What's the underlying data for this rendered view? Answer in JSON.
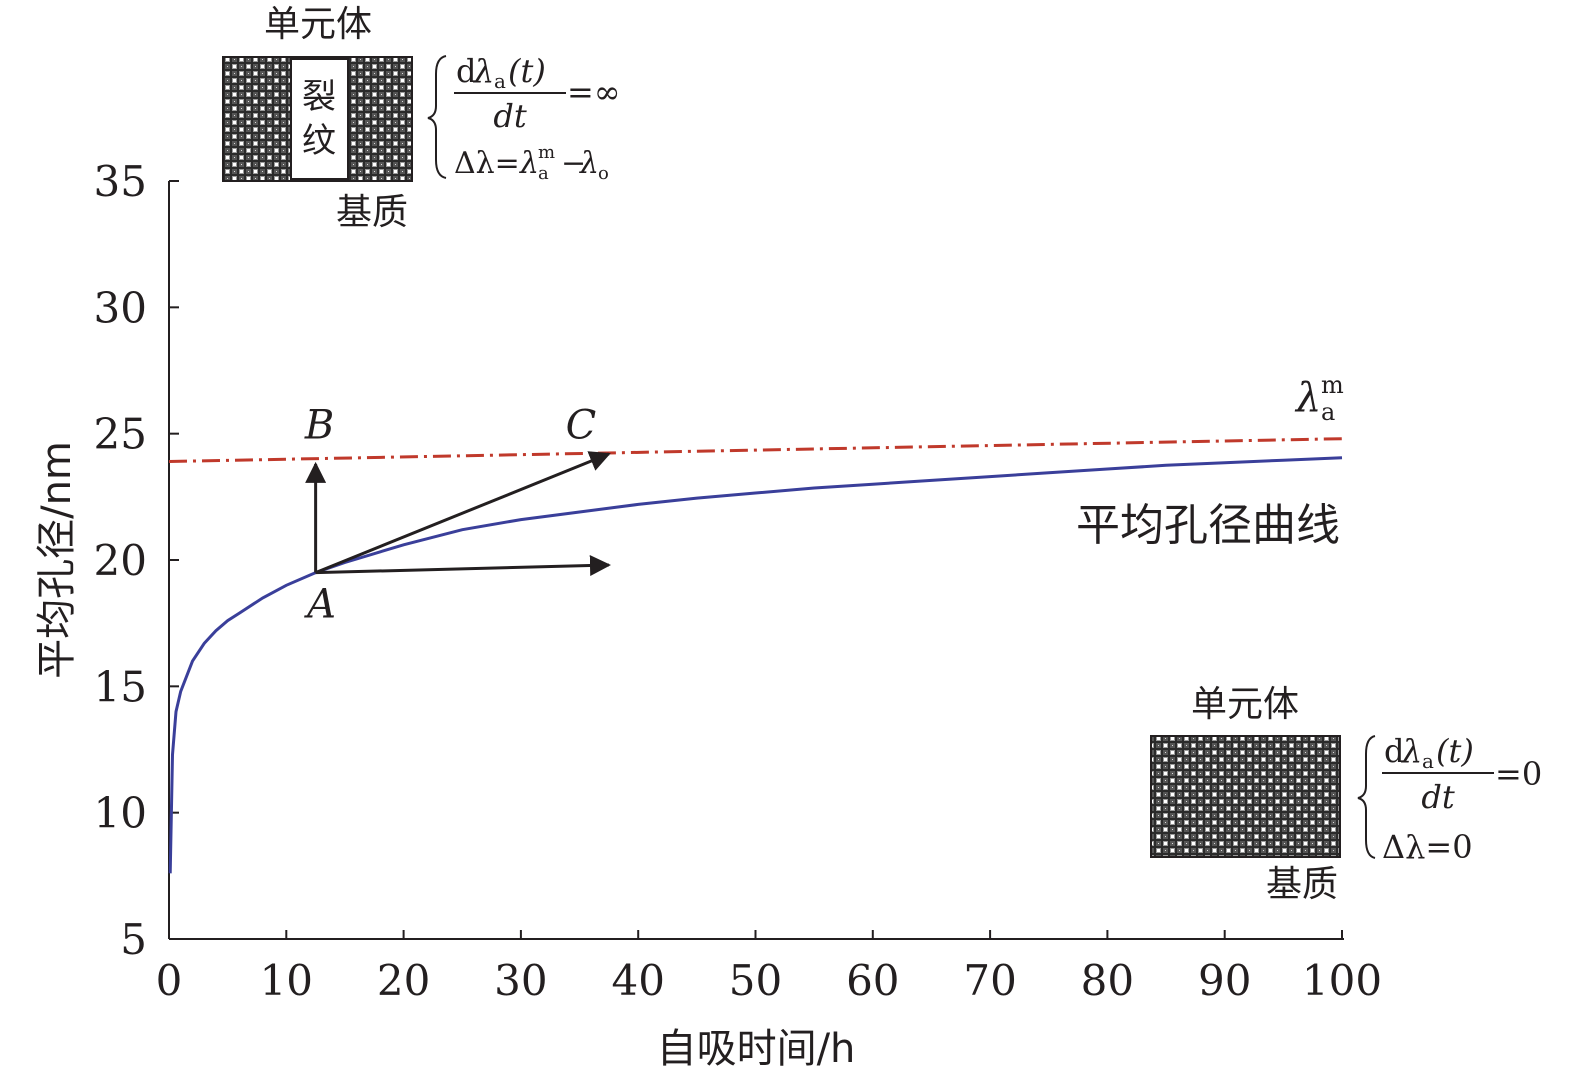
{
  "chart_data": {
    "type": "line",
    "xlabel": "自吸时间/h",
    "ylabel": "平均孔径/nm",
    "xlim": [
      0,
      100
    ],
    "ylim": [
      5,
      35
    ],
    "x_ticks": [
      "0",
      "10",
      "20",
      "30",
      "40",
      "50",
      "60",
      "70",
      "80",
      "90",
      "100"
    ],
    "y_ticks": [
      "5",
      "10",
      "15",
      "20",
      "25",
      "30",
      "35"
    ],
    "grid": false,
    "series": [
      {
        "name": "平均孔径曲线",
        "color": "#3a3f9a",
        "x": [
          0.1,
          0.3,
          0.6,
          1,
          2,
          3,
          4,
          5,
          6,
          8,
          10,
          12.5,
          15,
          20,
          25,
          30,
          35,
          40,
          45,
          50,
          55,
          60,
          65,
          70,
          75,
          80,
          85,
          90,
          95,
          100
        ],
        "y": [
          7.6,
          12.3,
          14.0,
          14.8,
          16.0,
          16.7,
          17.2,
          17.6,
          17.9,
          18.5,
          19.0,
          19.5,
          19.9,
          20.6,
          21.2,
          21.6,
          21.9,
          22.2,
          22.45,
          22.65,
          22.85,
          23.0,
          23.15,
          23.3,
          23.45,
          23.6,
          23.75,
          23.85,
          23.95,
          24.05
        ]
      },
      {
        "name": "λam",
        "color": "#c0392b",
        "style": "dash-dot",
        "x": [
          0,
          100
        ],
        "y": [
          23.9,
          24.8
        ]
      }
    ],
    "annotations": {
      "points": [
        {
          "label": "A",
          "x": 12.5,
          "y": 19.5
        },
        {
          "label": "B",
          "x": 12.5,
          "y": 25.0
        },
        {
          "label": "C",
          "x": 37.5,
          "y": 25.0
        }
      ],
      "arrows": [
        {
          "from": [
            12.5,
            19.5
          ],
          "to": [
            12.5,
            23.8
          ]
        },
        {
          "from": [
            12.5,
            19.5
          ],
          "to": [
            37.5,
            24.2
          ]
        },
        {
          "from": [
            12.5,
            19.5
          ],
          "to": [
            37.5,
            19.8
          ]
        }
      ],
      "curve_label": "平均孔径曲线",
      "asymptote_label": {
        "symbol": "λ",
        "sub": "a",
        "sup": "m"
      }
    },
    "insets": {
      "top": {
        "title": "单元体",
        "crack_label": [
          "裂",
          "纹"
        ],
        "base_label": "基质",
        "eq1": {
          "d": "d",
          "lambda": "λ",
          "sub": "a",
          "arg": "(t)",
          "den": "dt",
          "rhs": "=∞"
        },
        "eq2": {
          "prefix": "Δλ=",
          "lambda": "λ",
          "sub": "a",
          "sup": "m",
          "minus": "−",
          "lambda2": "λ",
          "sub2": "o"
        }
      },
      "bottom": {
        "title": "单元体",
        "base_label": "基质",
        "eq1": {
          "d": "d",
          "lambda": "λ",
          "sub": "a",
          "arg": "(t)",
          "den": "dt",
          "rhs": "=0"
        },
        "eq2": {
          "text": "Δλ=0"
        }
      }
    }
  }
}
